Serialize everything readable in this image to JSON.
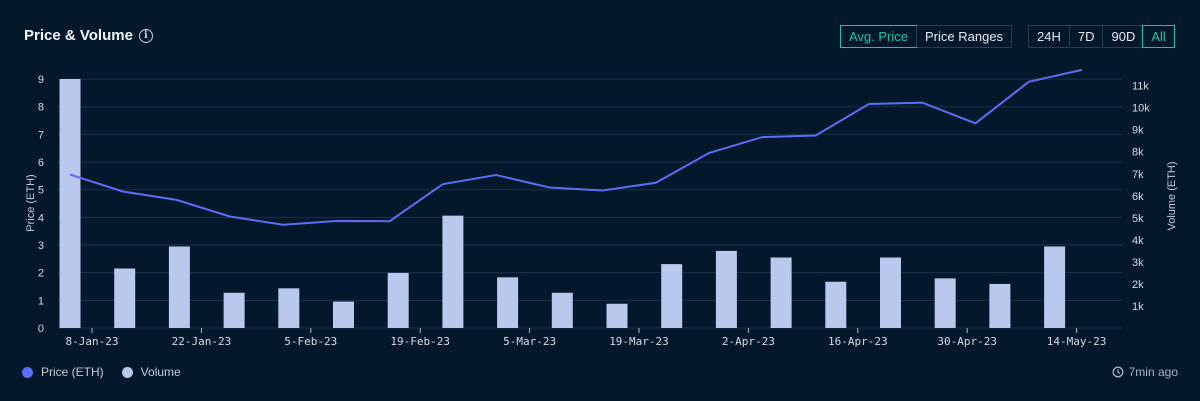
{
  "header": {
    "title": "Price & Volume",
    "range_buttons": [
      "Avg. Price",
      "Price Ranges"
    ],
    "time_buttons": [
      "24H",
      "7D",
      "90D",
      "All"
    ]
  },
  "footer": {
    "legend_price": "Price (ETH)",
    "legend_volume": "Volume",
    "updated": "7min ago"
  },
  "colors": {
    "price_line": "#5b6ef5",
    "volume_bar": "#b9c8ec",
    "active_accent": "#18c9a0"
  },
  "chart_data": {
    "type": "bar",
    "x_tick_labels": [
      "8-Jan-23",
      "22-Jan-23",
      "5-Feb-23",
      "19-Feb-23",
      "5-Mar-23",
      "19-Mar-23",
      "2-Apr-23",
      "16-Apr-23",
      "30-Apr-23",
      "14-May-23"
    ],
    "ylabel": "Price (ETH)",
    "y2label": "Volume (ETH)",
    "ylim": [
      0,
      9.4
    ],
    "y_ticks": [
      0,
      1,
      2,
      3,
      4,
      5,
      6,
      7,
      8,
      9
    ],
    "y2lim": [
      0,
      11800
    ],
    "y2_ticks": [
      "1k",
      "2k",
      "3k",
      "4k",
      "5k",
      "6k",
      "7k",
      "8k",
      "9k",
      "10k",
      "11k"
    ],
    "grid": true,
    "series": [
      {
        "name": "Volume",
        "type": "bar",
        "axis": "right",
        "values": [
          11300,
          2700,
          3700,
          1600,
          1800,
          1200,
          2500,
          5100,
          2300,
          1600,
          1100,
          2900,
          3500,
          3200,
          2100,
          3200,
          2250,
          2000,
          3700
        ]
      },
      {
        "name": "Price (ETH)",
        "type": "line",
        "axis": "left",
        "values": [
          5.55,
          4.93,
          4.63,
          4.03,
          3.73,
          3.87,
          3.86,
          5.2,
          5.53,
          5.08,
          4.97,
          5.25,
          6.33,
          6.9,
          6.96,
          8.1,
          8.15,
          7.4,
          8.9,
          9.33
        ]
      }
    ]
  }
}
